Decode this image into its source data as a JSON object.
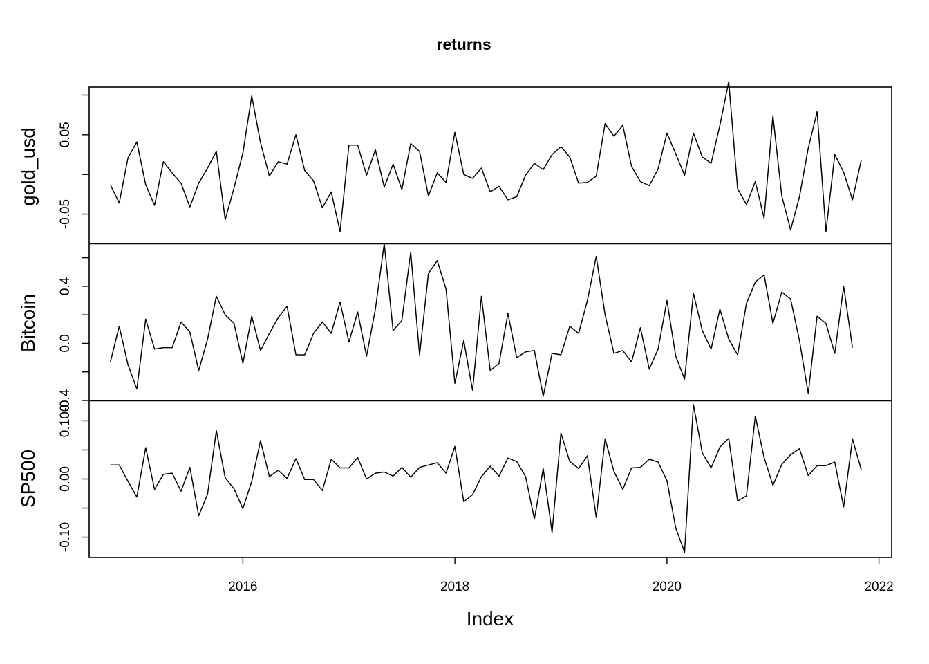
{
  "chart_data": {
    "type": "line",
    "title": "returns",
    "xlabel": "Index",
    "x_tick_labels": [
      "2016",
      "2018",
      "2020",
      "2022"
    ],
    "x_ticks": [
      2016,
      2018,
      2020,
      2022
    ],
    "xlim": [
      2014.55,
      2022.12
    ],
    "x_start": 2014.75,
    "x_step": 0.0833333,
    "panels": [
      {
        "name": "gold_usd",
        "ylim": [
          -0.087,
          0.11
        ],
        "y_ticks": [
          -0.05,
          0.0,
          0.05,
          0.1
        ],
        "y_tick_labels": [
          "-0.05",
          "",
          "0.05",
          ""
        ],
        "values": [
          -0.013,
          -0.036,
          0.021,
          0.041,
          -0.013,
          -0.039,
          0.016,
          0.002,
          -0.011,
          -0.041,
          -0.011,
          0.008,
          0.029,
          -0.057,
          -0.017,
          0.027,
          0.099,
          0.04,
          -0.002,
          0.016,
          0.013,
          0.05,
          0.005,
          -0.008,
          -0.042,
          -0.022,
          -0.072,
          0.037,
          0.037,
          -0.001,
          0.031,
          -0.016,
          0.013,
          -0.019,
          0.039,
          0.029,
          -0.027,
          0.002,
          -0.01,
          0.053,
          0.0,
          -0.005,
          0.008,
          -0.022,
          -0.015,
          -0.032,
          -0.028,
          -0.001,
          0.014,
          0.006,
          0.025,
          0.035,
          0.022,
          -0.011,
          -0.01,
          -0.002,
          0.064,
          0.048,
          0.062,
          0.01,
          -0.009,
          -0.014,
          0.007,
          0.052,
          0.026,
          -0.001,
          0.052,
          0.022,
          0.014,
          0.062,
          0.117,
          -0.018,
          -0.038,
          -0.009,
          -0.055,
          0.074,
          -0.027,
          -0.07,
          -0.028,
          0.033,
          0.079,
          -0.072,
          0.025,
          0.003,
          -0.032,
          0.018
        ],
        "series_name": "gold_usd"
      },
      {
        "name": "Bitcoin",
        "ylim": [
          -0.4,
          0.7
        ],
        "y_ticks": [
          -0.4,
          -0.2,
          0.0,
          0.2,
          0.4,
          0.6
        ],
        "y_tick_labels": [
          "-0.4",
          "",
          "0.0",
          "",
          "0.4",
          ""
        ],
        "values": [
          -0.13,
          0.12,
          -0.15,
          -0.32,
          0.17,
          -0.04,
          -0.03,
          -0.03,
          0.15,
          0.08,
          -0.19,
          0.03,
          0.33,
          0.2,
          0.14,
          -0.14,
          0.19,
          -0.05,
          0.07,
          0.18,
          0.26,
          -0.08,
          -0.08,
          0.07,
          0.15,
          0.07,
          0.29,
          0.01,
          0.22,
          -0.09,
          0.24,
          0.7,
          0.09,
          0.16,
          0.64,
          -0.08,
          0.49,
          0.58,
          0.38,
          -0.28,
          0.02,
          -0.33,
          0.33,
          -0.19,
          -0.14,
          0.21,
          -0.1,
          -0.06,
          -0.05,
          -0.37,
          -0.07,
          -0.08,
          0.12,
          0.07,
          0.3,
          0.61,
          0.2,
          -0.07,
          -0.05,
          -0.13,
          0.11,
          -0.18,
          -0.04,
          0.3,
          -0.09,
          -0.25,
          0.35,
          0.09,
          -0.04,
          0.24,
          0.03,
          -0.08,
          0.28,
          0.43,
          0.48,
          0.14,
          0.36,
          0.31,
          0.02,
          -0.35,
          0.19,
          0.14,
          -0.07,
          0.4,
          -0.03
        ],
        "series_name": "Bitcoin"
      },
      {
        "name": "SP500",
        "ylim": [
          -0.135,
          0.135
        ],
        "y_ticks": [
          -0.1,
          -0.05,
          0.0,
          0.05,
          0.1
        ],
        "y_tick_labels": [
          "-0.10",
          "",
          "0.00",
          "",
          "0.100"
        ],
        "values": [
          0.024,
          0.024,
          -0.004,
          -0.031,
          0.054,
          -0.018,
          0.008,
          0.01,
          -0.021,
          0.02,
          -0.063,
          -0.026,
          0.083,
          0.002,
          -0.017,
          -0.051,
          -0.004,
          0.066,
          0.004,
          0.015,
          0.001,
          0.035,
          -0.001,
          -0.001,
          -0.02,
          0.034,
          0.019,
          0.019,
          0.037,
          0.0,
          0.01,
          0.012,
          0.005,
          0.02,
          0.003,
          0.02,
          0.024,
          0.028,
          0.01,
          0.056,
          -0.039,
          -0.027,
          0.004,
          0.022,
          0.005,
          0.036,
          0.03,
          0.004,
          -0.069,
          0.018,
          -0.092,
          0.079,
          0.03,
          0.018,
          0.04,
          -0.066,
          0.069,
          0.013,
          -0.018,
          0.019,
          0.02,
          0.034,
          0.029,
          -0.003,
          -0.084,
          -0.126,
          0.128,
          0.045,
          0.019,
          0.055,
          0.07,
          -0.038,
          -0.029,
          0.108,
          0.037,
          -0.011,
          0.025,
          0.042,
          0.052,
          0.006,
          0.023,
          0.023,
          0.029,
          -0.048,
          0.069,
          0.016
        ],
        "series_name": "SP500"
      }
    ]
  }
}
